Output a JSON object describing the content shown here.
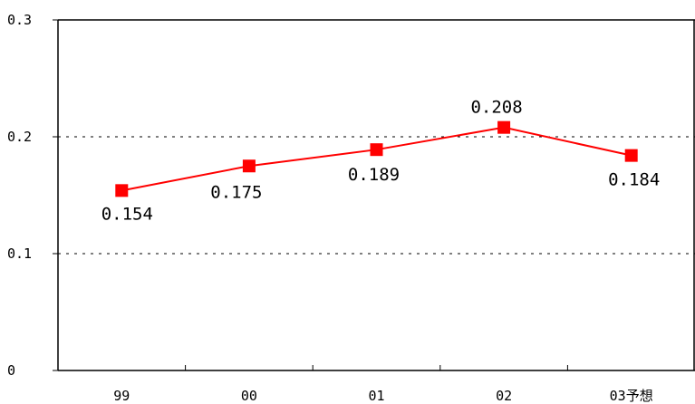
{
  "chart_data": {
    "type": "line",
    "categories": [
      "99",
      "00",
      "01",
      "02",
      "03予想"
    ],
    "series": [
      {
        "values": [
          0.154,
          0.175,
          0.189,
          0.208,
          0.184
        ],
        "data_labels": [
          "0.154",
          "0.175",
          "0.189",
          "0.208",
          "0.184"
        ],
        "color": "#ff0000",
        "marker": "square"
      }
    ],
    "title": "",
    "xlabel": "",
    "ylabel": "",
    "ylim": [
      0,
      0.3
    ],
    "yticks": [
      0,
      0.1,
      0.2,
      0.3
    ],
    "ytick_labels": [
      "0",
      "0.1",
      "0.2",
      "0.3"
    ],
    "grid": "horizontal dashed",
    "legend": "none"
  }
}
